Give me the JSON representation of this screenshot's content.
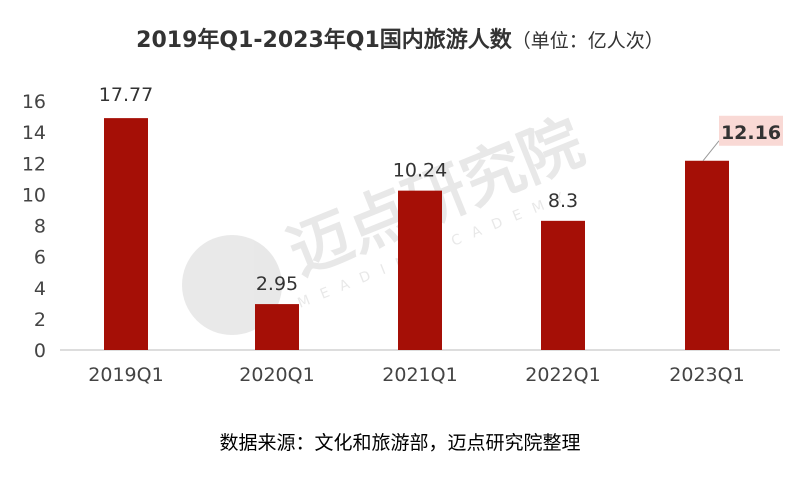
{
  "chart_data": {
    "type": "bar",
    "title": "2019年Q1-2023年Q1国内旅游人数",
    "title_unit": "（单位：亿人次）",
    "categories": [
      "2019Q1",
      "2020Q1",
      "2021Q1",
      "2022Q1",
      "2023Q1"
    ],
    "values": [
      17.77,
      2.95,
      10.24,
      8.3,
      12.16
    ],
    "data_labels": [
      "17.77",
      "2.95",
      "10.24",
      "8.3",
      "12.16"
    ],
    "highlighted_label": "12.16",
    "ylim": [
      0,
      16
    ],
    "yticks": [
      "0",
      "2",
      "4",
      "6",
      "8",
      "10",
      "12",
      "14",
      "16"
    ],
    "grid": false,
    "legend": "none",
    "bar_color": "#A50F06",
    "highlight_color": "#F9D9D5"
  },
  "source": "数据来源：文化和旅游部，迈点研究院整理",
  "watermark": {
    "cn": "迈点研究院",
    "en": "MEADIN ACADEMY"
  }
}
